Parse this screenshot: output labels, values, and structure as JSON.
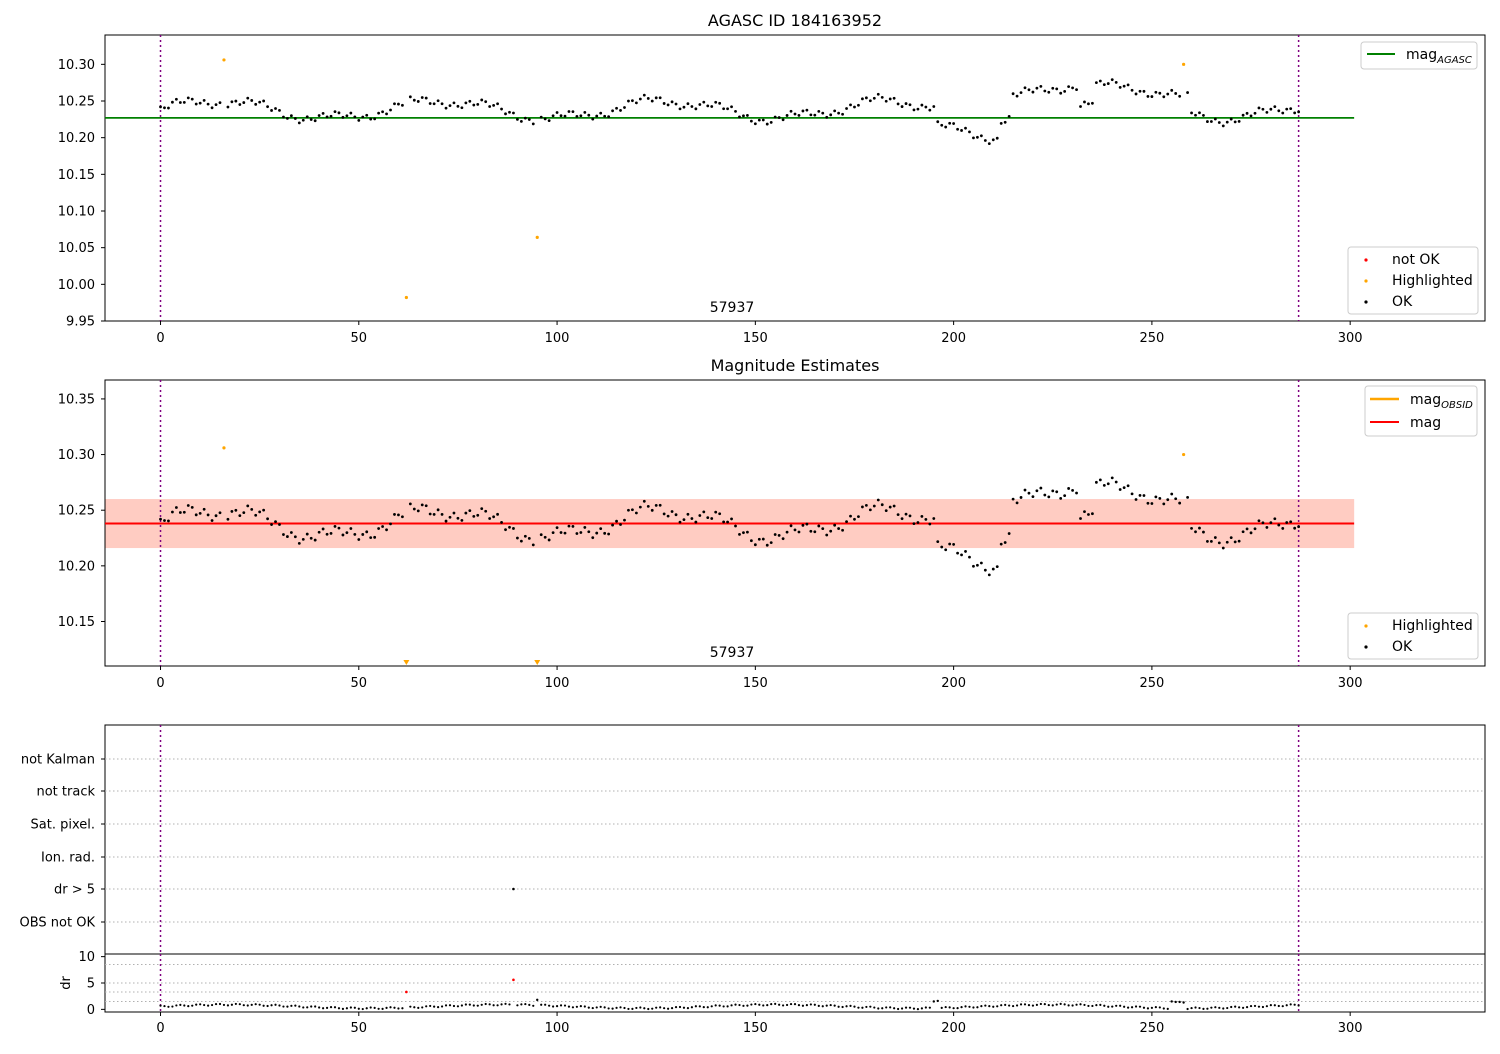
{
  "chart_data": [
    {
      "type": "scatter",
      "title": "AGASC ID 184163952",
      "xlim": [
        -14,
        334
      ],
      "ylim": [
        9.95,
        10.34
      ],
      "x_ticks": [
        0,
        50,
        100,
        150,
        200,
        250,
        300
      ],
      "y_ticks": [
        9.95,
        10.0,
        10.05,
        10.1,
        10.15,
        10.2,
        10.25,
        10.3
      ],
      "y_tick_labels": [
        "9.95",
        "10.00",
        "10.05",
        "10.10",
        "10.15",
        "10.20",
        "10.25",
        "10.30"
      ],
      "grid": false,
      "mag_agasc": 10.227,
      "line_x_range": [
        -14,
        301
      ],
      "obsid_bounds": [
        0,
        287
      ],
      "obsid_label": "57937",
      "highlighted": [
        [
          16,
          10.306
        ],
        [
          62,
          9.982
        ],
        [
          95,
          10.064
        ],
        [
          258,
          10.3
        ]
      ],
      "not_ok": [],
      "colors": {
        "ok": "#000000",
        "highlighted": "#ffa500",
        "not_ok": "#ff0000",
        "mag_agasc": "#008000",
        "obsid_line": "#800080"
      },
      "legend_lines": [
        {
          "label": "mag",
          "sub": "AGASC",
          "color": "#008000"
        }
      ],
      "legend_points": [
        {
          "label": "not OK",
          "color": "#ff0000"
        },
        {
          "label": "Highlighted",
          "color": "#ffa500"
        },
        {
          "label": "OK",
          "color": "#000000"
        }
      ],
      "legend_lines_position": "upper right",
      "legend_points_position": "lower right"
    },
    {
      "type": "scatter",
      "title": "Magnitude Estimates",
      "xlim": [
        -14,
        334
      ],
      "ylim": [
        10.11,
        10.367
      ],
      "x_ticks": [
        0,
        50,
        100,
        150,
        200,
        250,
        300
      ],
      "y_ticks": [
        10.15,
        10.2,
        10.25,
        10.3,
        10.35
      ],
      "y_tick_labels": [
        "10.15",
        "10.20",
        "10.25",
        "10.30",
        "10.35"
      ],
      "grid": false,
      "mag_obsid": 10.238,
      "mag_obsid_band": [
        10.216,
        10.26
      ],
      "mag": 10.238,
      "mag_band": [
        10.216,
        10.26
      ],
      "line_x_range": [
        -14,
        301
      ],
      "obsid_bounds": [
        0,
        287
      ],
      "obsid_label": "57937",
      "highlighted": [
        [
          16,
          10.306
        ],
        [
          258,
          10.3
        ]
      ],
      "highlighted_below_axis": [
        62,
        95
      ],
      "colors": {
        "ok": "#000000",
        "highlighted": "#ffa500",
        "mag": "#ff0000",
        "mag_obsid": "#ffa500",
        "mag_band": "#ffc0cb",
        "mag_obsid_band": "#ffa07a",
        "obsid_line": "#800080"
      },
      "legend_lines": [
        {
          "label": "mag",
          "sub": "OBSID",
          "color": "#ffa500"
        },
        {
          "label": "mag",
          "sub": "",
          "color": "#ff0000"
        }
      ],
      "legend_points": [
        {
          "label": "Highlighted",
          "color": "#ffa500"
        },
        {
          "label": "OK",
          "color": "#000000"
        }
      ],
      "legend_lines_position": "upper right",
      "legend_points_position": "lower right"
    },
    {
      "type": "scatter",
      "xlim": [
        -14,
        334
      ],
      "flag_categories": [
        "not Kalman",
        "not track",
        "Sat. pixel.",
        "Ion. rad.",
        "dr > 5",
        "OBS not OK"
      ],
      "flag_points": [
        {
          "category": "dr > 5",
          "x": 89
        }
      ],
      "dr_ylim": [
        -0.5,
        10.5
      ],
      "dr_y_ticks": [
        0,
        5,
        10
      ],
      "dr_y_tick_labels": [
        "0",
        "5",
        "10"
      ],
      "dr_ylabel": "dr",
      "dr_gridlines": [
        1.5,
        3.3,
        5,
        8.5
      ],
      "x_ticks": [
        0,
        50,
        100,
        150,
        200,
        250,
        300
      ],
      "obsid_bounds": [
        0,
        287
      ],
      "dr_red_points": [
        [
          62,
          3.3
        ],
        [
          89,
          5.6
        ]
      ],
      "dr_outliers": [
        [
          95,
          1.8
        ],
        [
          195,
          1.5
        ],
        [
          196,
          1.6
        ],
        [
          255,
          1.5
        ],
        [
          256,
          1.4
        ],
        [
          257,
          1.4
        ],
        [
          258,
          1.3
        ]
      ],
      "grid": true
    }
  ]
}
